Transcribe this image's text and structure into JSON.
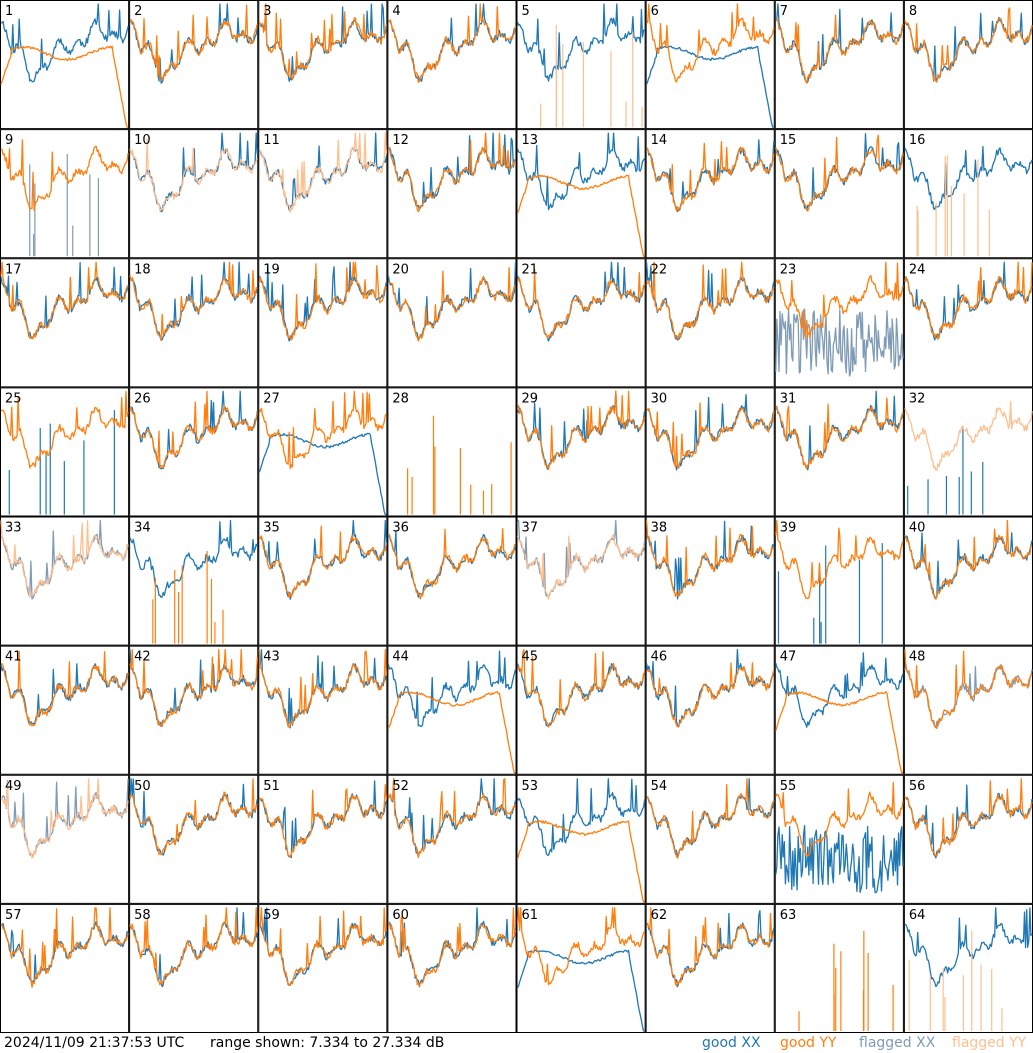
{
  "timestamp": "2024/11/09 21:37:53 UTC",
  "range_text": "range shown: 7.334 to 27.334 dB",
  "legend": [
    {
      "label": "good XX",
      "color": "#1f77b4"
    },
    {
      "label": "good YY",
      "color": "#ff7f0e"
    },
    {
      "label": "flagged XX",
      "color": "#7f9bb5"
    },
    {
      "label": "flagged YY",
      "color": "#ffbf8f"
    }
  ],
  "chart_data": {
    "type": "line",
    "title": "",
    "grid_rows": 8,
    "grid_cols": 8,
    "ylim": [
      7.334,
      27.334
    ],
    "y_unit": "dB",
    "series_names": [
      "good XX",
      "good YY",
      "flagged XX",
      "flagged YY"
    ],
    "panels": [
      {
        "label": "1",
        "xx": "good",
        "yy": "good",
        "xx_shape": "normal",
        "yy_shape": "rolloff"
      },
      {
        "label": "2",
        "xx": "good",
        "yy": "good",
        "xx_shape": "normal",
        "yy_shape": "normal"
      },
      {
        "label": "3",
        "xx": "good",
        "yy": "good",
        "xx_shape": "normal",
        "yy_shape": "normal"
      },
      {
        "label": "4",
        "xx": "good",
        "yy": "good",
        "xx_shape": "normal",
        "yy_shape": "normal"
      },
      {
        "label": "5",
        "xx": "good",
        "yy": "flagged",
        "xx_shape": "normal",
        "yy_shape": "spikes"
      },
      {
        "label": "6",
        "xx": "good",
        "yy": "good",
        "xx_shape": "rolloff",
        "yy_shape": "normal"
      },
      {
        "label": "7",
        "xx": "good",
        "yy": "good",
        "xx_shape": "normal",
        "yy_shape": "normal"
      },
      {
        "label": "8",
        "xx": "good",
        "yy": "good",
        "xx_shape": "normal",
        "yy_shape": "normal"
      },
      {
        "label": "9",
        "xx": "flagged",
        "yy": "good",
        "xx_shape": "spikes",
        "yy_shape": "normal"
      },
      {
        "label": "10",
        "xx": "good",
        "yy": "flagged",
        "xx_shape": "normal",
        "yy_shape": "normal"
      },
      {
        "label": "11",
        "xx": "good",
        "yy": "flagged",
        "xx_shape": "normal",
        "yy_shape": "normal"
      },
      {
        "label": "12",
        "xx": "good",
        "yy": "good",
        "xx_shape": "normal",
        "yy_shape": "normal"
      },
      {
        "label": "13",
        "xx": "good",
        "yy": "good",
        "xx_shape": "normal",
        "yy_shape": "rolloff"
      },
      {
        "label": "14",
        "xx": "good",
        "yy": "good",
        "xx_shape": "normal",
        "yy_shape": "normal"
      },
      {
        "label": "15",
        "xx": "good",
        "yy": "good",
        "xx_shape": "normal",
        "yy_shape": "normal"
      },
      {
        "label": "16",
        "xx": "good",
        "yy": "flagged",
        "xx_shape": "normal",
        "yy_shape": "spikes"
      },
      {
        "label": "17",
        "xx": "good",
        "yy": "good",
        "xx_shape": "normal",
        "yy_shape": "normal"
      },
      {
        "label": "18",
        "xx": "good",
        "yy": "good",
        "xx_shape": "normal",
        "yy_shape": "normal"
      },
      {
        "label": "19",
        "xx": "good",
        "yy": "good",
        "xx_shape": "normal",
        "yy_shape": "normal"
      },
      {
        "label": "20",
        "xx": "good",
        "yy": "good",
        "xx_shape": "normal",
        "yy_shape": "normal"
      },
      {
        "label": "21",
        "xx": "good",
        "yy": "good",
        "xx_shape": "normal",
        "yy_shape": "normal"
      },
      {
        "label": "22",
        "xx": "good",
        "yy": "good",
        "xx_shape": "normal",
        "yy_shape": "normal"
      },
      {
        "label": "23",
        "xx": "flagged",
        "yy": "good",
        "xx_shape": "noisy",
        "yy_shape": "normal"
      },
      {
        "label": "24",
        "xx": "good",
        "yy": "good",
        "xx_shape": "normal",
        "yy_shape": "normal"
      },
      {
        "label": "25",
        "xx": "good",
        "yy": "good",
        "xx_shape": "spikes",
        "yy_shape": "normal"
      },
      {
        "label": "26",
        "xx": "good",
        "yy": "good",
        "xx_shape": "normal",
        "yy_shape": "normal"
      },
      {
        "label": "27",
        "xx": "good",
        "yy": "good",
        "xx_shape": "rolloff",
        "yy_shape": "normal"
      },
      {
        "label": "28",
        "xx": "good",
        "yy": "good",
        "xx_shape": "none",
        "yy_shape": "spikes"
      },
      {
        "label": "29",
        "xx": "good",
        "yy": "good",
        "xx_shape": "normal",
        "yy_shape": "normal"
      },
      {
        "label": "30",
        "xx": "good",
        "yy": "good",
        "xx_shape": "normal",
        "yy_shape": "normal"
      },
      {
        "label": "31",
        "xx": "good",
        "yy": "good",
        "xx_shape": "normal",
        "yy_shape": "normal"
      },
      {
        "label": "32",
        "xx": "good",
        "yy": "flagged",
        "xx_shape": "spikes",
        "yy_shape": "normal"
      },
      {
        "label": "33",
        "xx": "flagged",
        "yy": "flagged",
        "xx_shape": "normal",
        "yy_shape": "normal"
      },
      {
        "label": "34",
        "xx": "good",
        "yy": "good",
        "xx_shape": "normal",
        "yy_shape": "spikes"
      },
      {
        "label": "35",
        "xx": "good",
        "yy": "good",
        "xx_shape": "normal",
        "yy_shape": "normal"
      },
      {
        "label": "36",
        "xx": "good",
        "yy": "good",
        "xx_shape": "normal",
        "yy_shape": "normal"
      },
      {
        "label": "37",
        "xx": "flagged",
        "yy": "flagged",
        "xx_shape": "normal",
        "yy_shape": "normal"
      },
      {
        "label": "38",
        "xx": "good",
        "yy": "good",
        "xx_shape": "normal",
        "yy_shape": "normal"
      },
      {
        "label": "39",
        "xx": "good",
        "yy": "good",
        "xx_shape": "spikes",
        "yy_shape": "normal"
      },
      {
        "label": "40",
        "xx": "good",
        "yy": "good",
        "xx_shape": "normal",
        "yy_shape": "normal"
      },
      {
        "label": "41",
        "xx": "good",
        "yy": "good",
        "xx_shape": "normal",
        "yy_shape": "normal"
      },
      {
        "label": "42",
        "xx": "good",
        "yy": "good",
        "xx_shape": "normal",
        "yy_shape": "normal"
      },
      {
        "label": "43",
        "xx": "good",
        "yy": "good",
        "xx_shape": "normal",
        "yy_shape": "normal"
      },
      {
        "label": "44",
        "xx": "good",
        "yy": "good",
        "xx_shape": "normal",
        "yy_shape": "rolloff"
      },
      {
        "label": "45",
        "xx": "good",
        "yy": "good",
        "xx_shape": "normal",
        "yy_shape": "normal"
      },
      {
        "label": "46",
        "xx": "good",
        "yy": "good",
        "xx_shape": "normal",
        "yy_shape": "normal"
      },
      {
        "label": "47",
        "xx": "good",
        "yy": "good",
        "xx_shape": "normal",
        "yy_shape": "rolloff"
      },
      {
        "label": "48",
        "xx": "flagged",
        "yy": "good",
        "xx_shape": "normal",
        "yy_shape": "normal"
      },
      {
        "label": "49",
        "xx": "flagged",
        "yy": "flagged",
        "xx_shape": "normal",
        "yy_shape": "normal"
      },
      {
        "label": "50",
        "xx": "good",
        "yy": "good",
        "xx_shape": "normal",
        "yy_shape": "normal"
      },
      {
        "label": "51",
        "xx": "good",
        "yy": "good",
        "xx_shape": "normal",
        "yy_shape": "normal"
      },
      {
        "label": "52",
        "xx": "good",
        "yy": "good",
        "xx_shape": "normal",
        "yy_shape": "normal"
      },
      {
        "label": "53",
        "xx": "good",
        "yy": "good",
        "xx_shape": "normal",
        "yy_shape": "rolloff"
      },
      {
        "label": "54",
        "xx": "good",
        "yy": "good",
        "xx_shape": "normal",
        "yy_shape": "normal"
      },
      {
        "label": "55",
        "xx": "good",
        "yy": "good",
        "xx_shape": "noisy",
        "yy_shape": "normal"
      },
      {
        "label": "56",
        "xx": "good",
        "yy": "good",
        "xx_shape": "normal",
        "yy_shape": "normal"
      },
      {
        "label": "57",
        "xx": "good",
        "yy": "good",
        "xx_shape": "normal",
        "yy_shape": "normal"
      },
      {
        "label": "58",
        "xx": "good",
        "yy": "good",
        "xx_shape": "normal",
        "yy_shape": "normal"
      },
      {
        "label": "59",
        "xx": "good",
        "yy": "good",
        "xx_shape": "normal",
        "yy_shape": "normal"
      },
      {
        "label": "60",
        "xx": "good",
        "yy": "good",
        "xx_shape": "normal",
        "yy_shape": "normal"
      },
      {
        "label": "61",
        "xx": "good",
        "yy": "good",
        "xx_shape": "rolloff",
        "yy_shape": "normal"
      },
      {
        "label": "62",
        "xx": "good",
        "yy": "good",
        "xx_shape": "normal",
        "yy_shape": "normal"
      },
      {
        "label": "63",
        "xx": "good",
        "yy": "good",
        "xx_shape": "none",
        "yy_shape": "spikes"
      },
      {
        "label": "64",
        "xx": "good",
        "yy": "flagged",
        "xx_shape": "normal",
        "yy_shape": "spikes"
      }
    ]
  }
}
